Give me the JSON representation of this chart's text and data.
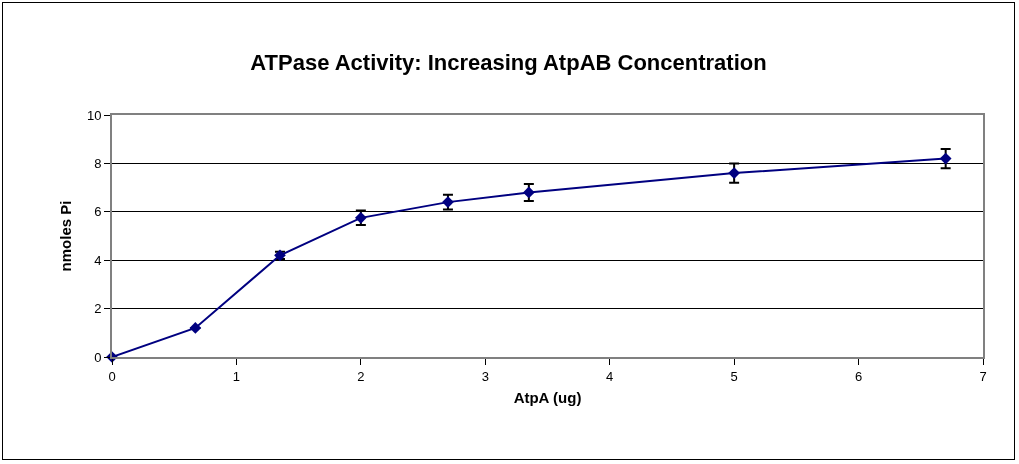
{
  "chart_data": {
    "type": "line",
    "title": "ATPase Activity: Increasing AtpAB Concentration",
    "xlabel": "AtpA (ug)",
    "ylabel": "nmoles Pi",
    "x": [
      0,
      0.67,
      1.35,
      2,
      2.7,
      3.35,
      5,
      6.7
    ],
    "series": [
      {
        "color": "#000080",
        "values": [
          0,
          1.2,
          4.2,
          5.75,
          6.4,
          6.8,
          7.6,
          8.2
        ],
        "errors": [
          null,
          null,
          0.15,
          0.3,
          0.3,
          0.35,
          0.4,
          0.4
        ]
      }
    ],
    "xlim": [
      0,
      7
    ],
    "xticks": [
      0,
      1,
      2,
      3,
      4,
      5,
      6,
      7
    ],
    "ylim": [
      0,
      10
    ],
    "yticks": [
      0,
      2,
      4,
      6,
      8,
      10
    ],
    "grid": "y",
    "marker": "diamond",
    "line_style": "solid"
  }
}
